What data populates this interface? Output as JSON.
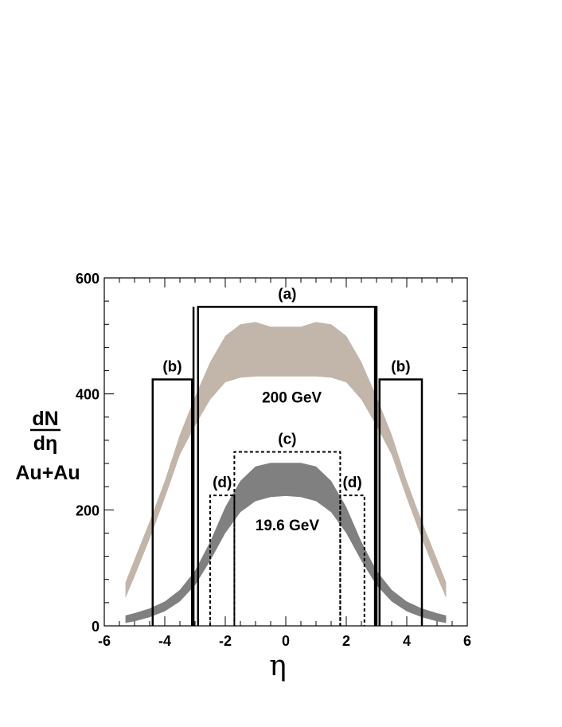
{
  "chart_data": {
    "type": "area",
    "xlabel": "η",
    "ylabel": {
      "num": "dN",
      "den": "dη"
    },
    "system_label": "Au+Au",
    "xlim": [
      -6,
      6
    ],
    "ylim": [
      0,
      600
    ],
    "x_ticks": [
      "-6",
      "-4",
      "-2",
      "0",
      "2",
      "4",
      "6"
    ],
    "y_ticks": [
      "0",
      "200",
      "400",
      "600"
    ],
    "grid": false,
    "series": [
      {
        "name": "200 GeV",
        "color": "#c2b5a9",
        "x": [
          -5.3,
          -5.0,
          -4.5,
          -4.0,
          -3.5,
          -3.0,
          -2.5,
          -2.0,
          -1.5,
          -1.0,
          -0.5,
          0,
          0.5,
          1.0,
          1.5,
          2.0,
          2.5,
          3.0,
          3.5,
          4.0,
          4.5,
          5.0,
          5.3
        ],
        "lower": [
          48,
          85,
          150,
          220,
          295,
          345,
          390,
          420,
          428,
          430,
          430,
          430,
          430,
          430,
          428,
          420,
          390,
          345,
          295,
          220,
          150,
          85,
          48
        ],
        "upper": [
          75,
          115,
          180,
          250,
          330,
          395,
          455,
          500,
          520,
          524,
          516,
          516,
          516,
          524,
          520,
          500,
          455,
          395,
          330,
          250,
          180,
          115,
          75
        ]
      },
      {
        "name": "19.6 GeV",
        "color": "#808080",
        "x": [
          -5.3,
          -5.0,
          -4.5,
          -4.0,
          -3.5,
          -3.0,
          -2.5,
          -2.0,
          -1.5,
          -1.0,
          -0.5,
          0,
          0.5,
          1.0,
          1.5,
          2.0,
          2.5,
          3.0,
          3.5,
          4.0,
          4.5,
          5.0,
          5.3
        ],
        "lower": [
          5,
          8,
          15,
          25,
          42,
          70,
          112,
          160,
          196,
          215,
          222,
          224,
          222,
          215,
          196,
          160,
          112,
          70,
          42,
          25,
          15,
          8,
          5
        ],
        "upper": [
          18,
          22,
          30,
          42,
          62,
          95,
          145,
          205,
          250,
          275,
          281,
          281,
          281,
          275,
          250,
          205,
          145,
          95,
          62,
          42,
          30,
          22,
          18
        ]
      }
    ],
    "acceptance_boxes": [
      {
        "label": "(a)",
        "x0": -2.9,
        "x1": 3.0,
        "y": 550,
        "style": "solid"
      },
      {
        "label": "(b)",
        "x0": -4.4,
        "x1": -3.1,
        "y": 425,
        "style": "solid"
      },
      {
        "label": "(b)",
        "x0": 3.1,
        "x1": 4.5,
        "y": 425,
        "style": "solid"
      },
      {
        "label": "(c)",
        "x0": -1.7,
        "x1": 1.8,
        "y": 300,
        "style": "dotted"
      },
      {
        "label": "(d)",
        "x0": -2.5,
        "x1": -1.7,
        "y": 225,
        "style": "dotted"
      },
      {
        "label": "(d)",
        "x0": 1.8,
        "x1": 2.6,
        "y": 225,
        "style": "dotted"
      }
    ],
    "edge_lines": [
      {
        "x": -3.05,
        "style": "solid"
      },
      {
        "x": 2.95,
        "style": "solid"
      }
    ],
    "annotations": [
      {
        "text": "200 GeV",
        "x": 0.2,
        "y": 385
      },
      {
        "text": "19.6 GeV",
        "x": 0.05,
        "y": 165
      }
    ]
  }
}
